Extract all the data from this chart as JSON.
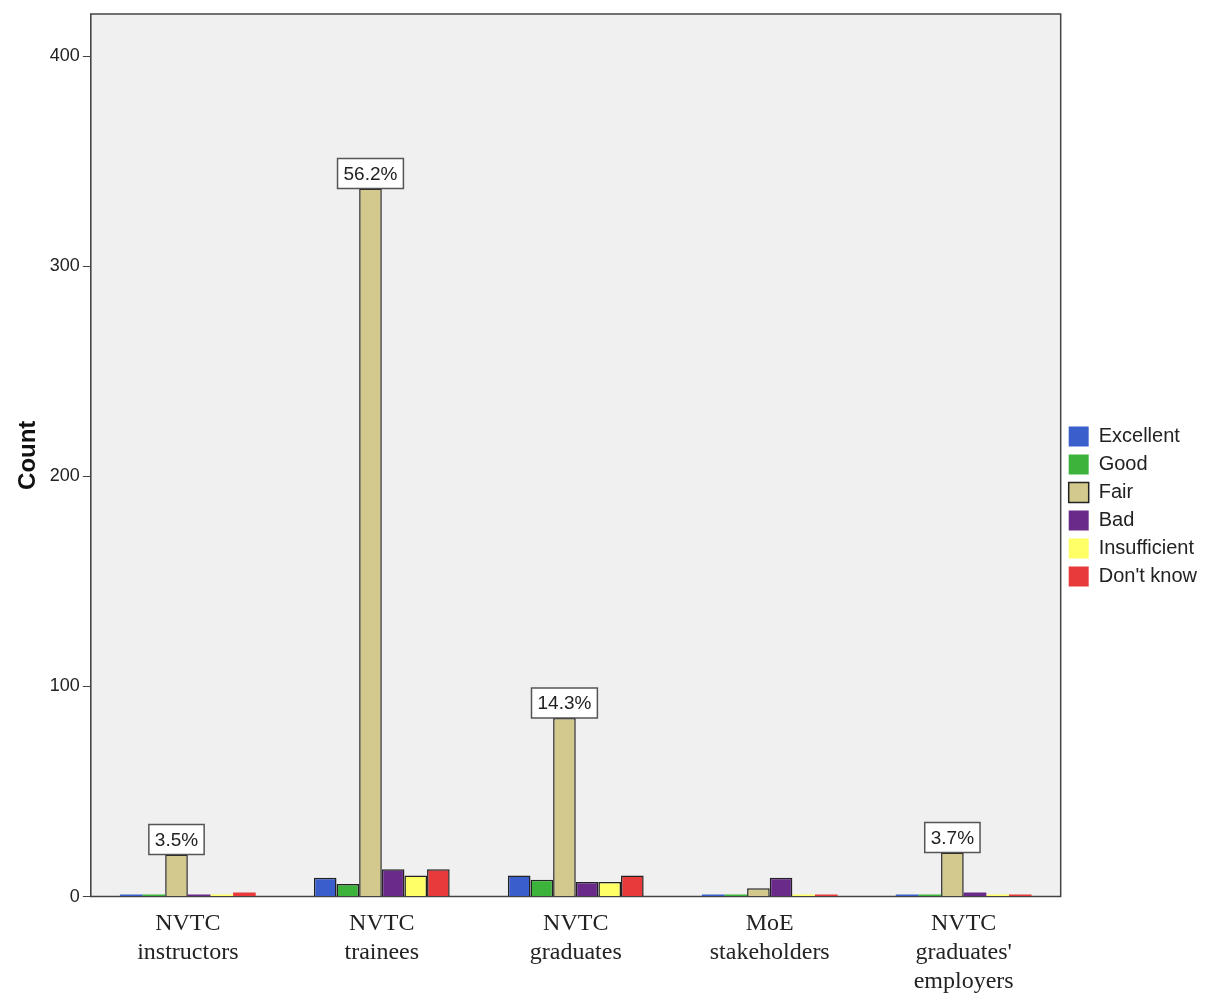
{
  "chart_data": {
    "type": "bar",
    "ylabel": "Count",
    "categories": [
      "NVTC instructors",
      "NVTC trainees",
      "NVTC graduates",
      "MoE stakeholders",
      "NVTC graduates' employers"
    ],
    "series": [
      {
        "name": "Excellent",
        "color": "#3a5fcd",
        "values": [
          1,
          9,
          10,
          1,
          0
        ]
      },
      {
        "name": "Good",
        "color": "#3cb43c",
        "values": [
          0,
          6,
          8,
          0,
          0
        ]
      },
      {
        "name": "Fair",
        "color": "#d4c98c",
        "values": [
          20,
          337,
          85,
          4,
          21
        ]
      },
      {
        "name": "Bad",
        "color": "#6a2a8a",
        "values": [
          0,
          13,
          7,
          9,
          2
        ]
      },
      {
        "name": "Insufficient",
        "color": "#ffff66",
        "values": [
          1,
          10,
          7,
          0,
          0
        ]
      },
      {
        "name": "Don't know",
        "color": "#e83a3a",
        "values": [
          2,
          13,
          10,
          1,
          0
        ]
      }
    ],
    "ylim": [
      0,
      420
    ],
    "yticks": [
      0,
      100,
      200,
      300,
      400
    ],
    "grid": false,
    "legend": "right",
    "annotations": [
      {
        "text": "3.5%",
        "x": "NVTC instructors",
        "y": 20
      },
      {
        "text": "56.2%",
        "x": "NVTC trainees",
        "y": 337
      },
      {
        "text": "14.3%",
        "x": "NVTC graduates",
        "y": 85
      },
      {
        "text": "3.7%",
        "x": "NVTC graduates' employers",
        "y": 21
      }
    ]
  }
}
